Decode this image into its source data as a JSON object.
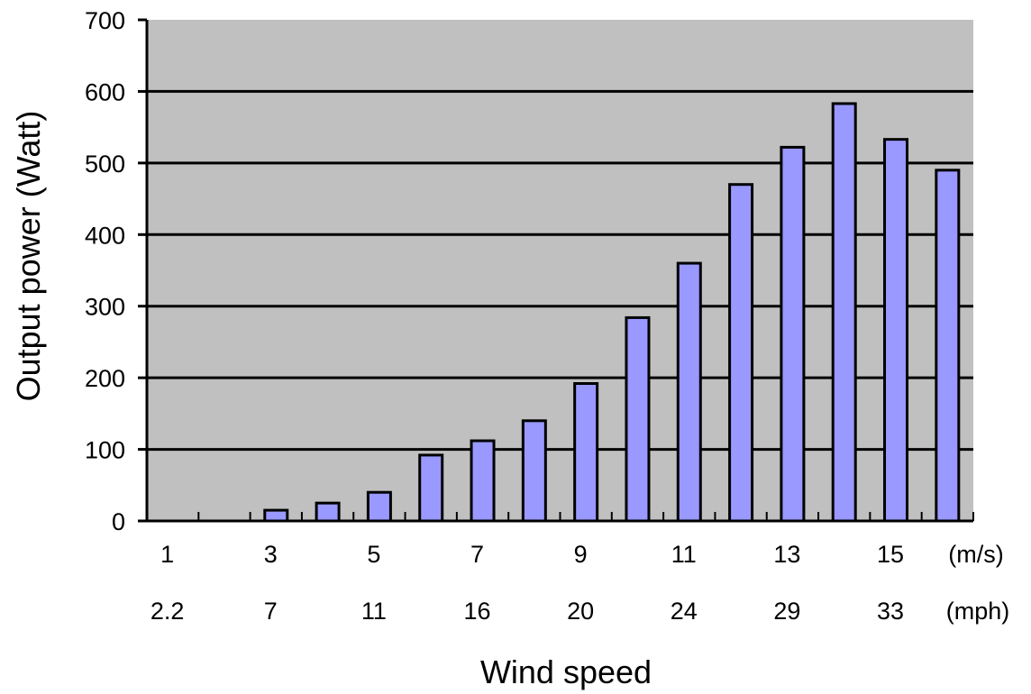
{
  "chart_data": {
    "type": "bar",
    "xlabel": "Wind speed",
    "ylabel": "Output power (Watt)",
    "ylim": [
      0,
      700
    ],
    "yticks": [
      0,
      100,
      200,
      300,
      400,
      500,
      600,
      700
    ],
    "grid": true,
    "legend": "none",
    "x_ms": [
      1,
      2,
      3,
      4,
      5,
      6,
      7,
      8,
      9,
      10,
      11,
      12,
      13,
      14,
      15,
      16
    ],
    "values": [
      0,
      0,
      15,
      25,
      40,
      92,
      112,
      140,
      192,
      284,
      360,
      470,
      522,
      583,
      533,
      490
    ],
    "x_tick_labels_ms": [
      {
        "at": 1,
        "label": "1"
      },
      {
        "at": 3,
        "label": "3"
      },
      {
        "at": 5,
        "label": "5"
      },
      {
        "at": 7,
        "label": "7"
      },
      {
        "at": 9,
        "label": "9"
      },
      {
        "at": 11,
        "label": "11"
      },
      {
        "at": 13,
        "label": "13"
      },
      {
        "at": 15,
        "label": "15"
      }
    ],
    "x_tick_labels_mph": [
      {
        "at": 1,
        "label": "2.2"
      },
      {
        "at": 3,
        "label": "7"
      },
      {
        "at": 5,
        "label": "11"
      },
      {
        "at": 7,
        "label": "16"
      },
      {
        "at": 9,
        "label": "20"
      },
      {
        "at": 11,
        "label": "24"
      },
      {
        "at": 13,
        "label": "29"
      },
      {
        "at": 15,
        "label": "33"
      }
    ],
    "unit_ms": "(m/s)",
    "unit_mph": "(mph)",
    "colors": {
      "plot_background": "#c0c0c0",
      "bar_fill": "#9999ff",
      "bar_stroke": "#000000",
      "grid_line": "#000000"
    }
  }
}
